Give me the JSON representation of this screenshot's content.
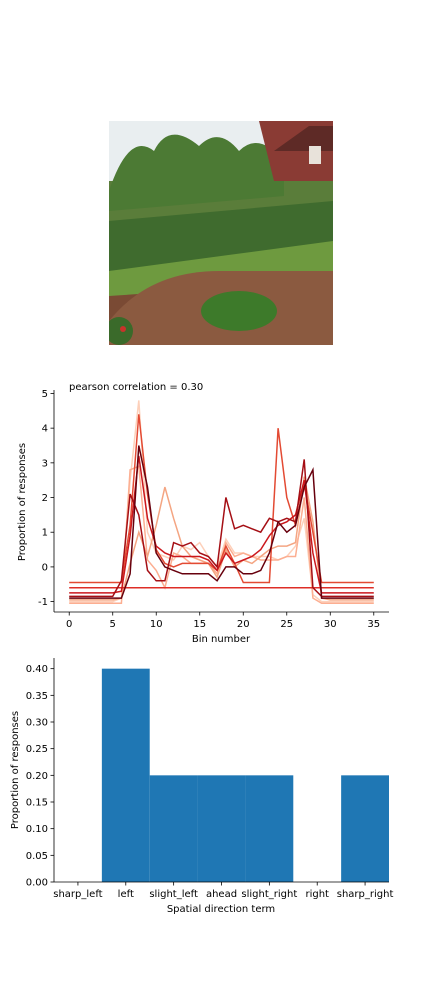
{
  "photo": {
    "icon": "garden-photo",
    "colors": {
      "sky": "#e9eef0",
      "foliage": "#3f6b2e",
      "mulch": "#7a4a34",
      "brick": "#8a3b34"
    }
  },
  "chart_data": [
    {
      "type": "line",
      "title": "pearson correlation = 0.30",
      "xlabel": "Bin number",
      "ylabel": "Proportion of responses",
      "xlim": [
        -1.75,
        36.75
      ],
      "ylim": [
        -1.3,
        5.1
      ],
      "xticks": [
        0,
        5,
        10,
        15,
        20,
        25,
        30,
        35
      ],
      "yticks": [
        -1,
        0,
        1,
        2,
        3,
        4,
        5
      ],
      "grid": false,
      "x": [
        0,
        1,
        2,
        3,
        4,
        5,
        6,
        7,
        8,
        9,
        10,
        11,
        12,
        13,
        14,
        15,
        16,
        17,
        18,
        19,
        20,
        21,
        22,
        23,
        24,
        25,
        26,
        27,
        28,
        29,
        30,
        31,
        32,
        33,
        34,
        35
      ],
      "series": [
        {
          "color": "#fdd0ba",
          "values": [
            -1.0,
            -1.0,
            -1.0,
            -1.0,
            -1.0,
            -1.0,
            -0.9,
            2.5,
            4.8,
            1.0,
            0.4,
            0.3,
            0.2,
            0.6,
            0.5,
            0.7,
            0.3,
            0.0,
            0.8,
            0.4,
            0.4,
            0.3,
            0.3,
            0.3,
            0.2,
            0.3,
            0.6,
            1.4,
            -0.8,
            -1.0,
            -1.0,
            -1.0,
            -1.0,
            -1.0,
            -1.0,
            -1.0
          ]
        },
        {
          "color": "#fcae91",
          "values": [
            -1.05,
            -1.05,
            -1.05,
            -1.05,
            -1.05,
            -1.05,
            -1.05,
            2.8,
            2.9,
            0.2,
            -0.1,
            -0.6,
            0.4,
            0.3,
            0.1,
            0.1,
            0.1,
            -0.2,
            0.7,
            0.3,
            0.4,
            0.3,
            0.2,
            0.2,
            0.2,
            0.3,
            0.3,
            2.0,
            -0.9,
            -1.05,
            -1.05,
            -1.05,
            -1.05,
            -1.05,
            -1.05,
            -1.05
          ]
        },
        {
          "color": "#f4a582",
          "values": [
            -0.95,
            -0.95,
            -0.95,
            -0.95,
            -0.95,
            -0.95,
            -0.9,
            0.1,
            1.0,
            0.3,
            1.2,
            2.3,
            1.4,
            0.6,
            0.3,
            0.2,
            0.1,
            -0.3,
            0.5,
            0.0,
            0.2,
            0.1,
            0.3,
            0.5,
            0.6,
            0.6,
            0.7,
            2.6,
            1.3,
            -0.9,
            -0.95,
            -0.95,
            -0.95,
            -0.95,
            -0.95,
            -0.95
          ]
        },
        {
          "color": "#e34a33",
          "values": [
            -0.45,
            -0.45,
            -0.45,
            -0.45,
            -0.45,
            -0.45,
            -0.45,
            1.2,
            4.4,
            2.1,
            0.5,
            0.1,
            0.0,
            0.1,
            0.1,
            0.1,
            0.1,
            -0.1,
            0.6,
            0.1,
            -0.45,
            -0.45,
            -0.45,
            -0.45,
            4.0,
            2.0,
            1.2,
            2.4,
            1.0,
            -0.45,
            -0.45,
            -0.45,
            -0.45,
            -0.45,
            -0.45,
            -0.45
          ]
        },
        {
          "color": "#de2d26",
          "values": [
            -0.6,
            -0.6,
            -0.6,
            -0.6,
            -0.6,
            -0.6,
            -0.6,
            -0.6,
            -0.6,
            -0.6,
            -0.6,
            -0.6,
            -0.6,
            -0.6,
            -0.6,
            -0.6,
            -0.6,
            -0.6,
            -0.6,
            -0.6,
            -0.6,
            -0.6,
            -0.6,
            -0.6,
            -0.6,
            -0.6,
            -0.6,
            -0.6,
            -0.6,
            -0.6,
            -0.6,
            -0.6,
            -0.6,
            -0.6,
            -0.6,
            -0.6
          ]
        },
        {
          "color": "#cb181d",
          "values": [
            -0.75,
            -0.75,
            -0.75,
            -0.75,
            -0.75,
            -0.75,
            -0.7,
            0.9,
            3.2,
            1.4,
            0.6,
            0.4,
            0.3,
            0.3,
            0.3,
            0.3,
            0.2,
            -0.1,
            0.4,
            0.1,
            0.2,
            0.3,
            0.5,
            0.9,
            1.2,
            1.3,
            1.5,
            2.5,
            0.4,
            -0.75,
            -0.75,
            -0.75,
            -0.75,
            -0.75,
            -0.75,
            -0.75
          ]
        },
        {
          "color": "#a50f15",
          "values": [
            -0.85,
            -0.85,
            -0.85,
            -0.85,
            -0.85,
            -0.85,
            -0.4,
            2.1,
            1.5,
            -0.1,
            -0.4,
            -0.4,
            0.7,
            0.6,
            0.7,
            0.4,
            0.3,
            0.0,
            2.0,
            1.1,
            1.2,
            1.1,
            1.0,
            1.4,
            1.3,
            1.4,
            1.3,
            3.1,
            -0.6,
            -0.85,
            -0.85,
            -0.85,
            -0.85,
            -0.85,
            -0.85,
            -0.85
          ]
        },
        {
          "color": "#67000d",
          "values": [
            -0.9,
            -0.9,
            -0.9,
            -0.9,
            -0.9,
            -0.9,
            -0.9,
            -0.2,
            3.5,
            2.3,
            0.4,
            0.0,
            -0.1,
            -0.2,
            -0.2,
            -0.2,
            -0.2,
            -0.4,
            0.0,
            0.0,
            -0.2,
            -0.2,
            -0.1,
            0.4,
            1.3,
            1.0,
            1.2,
            2.3,
            2.8,
            -0.9,
            -0.9,
            -0.9,
            -0.9,
            -0.9,
            -0.9,
            -0.9
          ]
        }
      ]
    },
    {
      "type": "bar",
      "xlabel": "Spatial direction term",
      "ylabel": "Proportion of responses",
      "categories": [
        "sharp_left",
        "left",
        "slight_left",
        "ahead",
        "slight_right",
        "right",
        "sharp_right"
      ],
      "values": [
        0.0,
        0.4,
        0.2,
        0.2,
        0.2,
        0.0,
        0.2
      ],
      "ylim": [
        0,
        0.42
      ],
      "yticks": [
        "0.00",
        "0.05",
        "0.10",
        "0.15",
        "0.20",
        "0.25",
        "0.30",
        "0.35",
        "0.40"
      ],
      "bar_color": "#1f77b4",
      "grid": false
    }
  ]
}
